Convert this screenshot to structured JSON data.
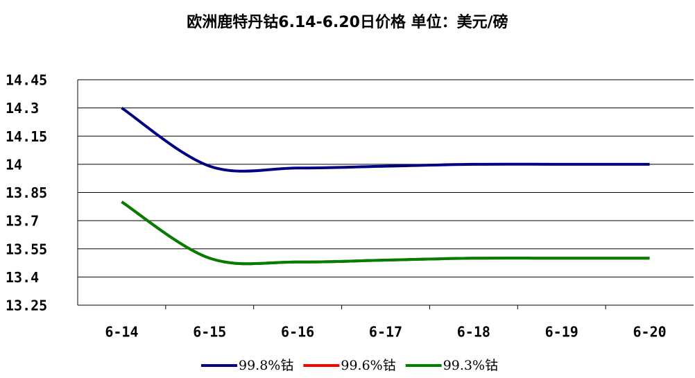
{
  "chart_data": {
    "type": "line",
    "title": "欧洲鹿特丹钴6.14-6.20日价格 单位：美元/磅",
    "categories": [
      "6-14",
      "6-15",
      "6-16",
      "6-17",
      "6-18",
      "6-19",
      "6-20"
    ],
    "series": [
      {
        "name": "99.8%钴",
        "color": "#000080",
        "values": [
          14.3,
          13.99,
          13.98,
          13.99,
          14,
          14,
          14
        ]
      },
      {
        "name": "99.6%钴",
        "color": "#ff0000",
        "values": [
          13.8,
          13.5,
          13.48,
          13.49,
          13.5,
          13.5,
          13.5
        ]
      },
      {
        "name": "99.3%钴",
        "color": "#008000",
        "values": [
          13.8,
          13.5,
          13.48,
          13.49,
          13.5,
          13.5,
          13.5
        ]
      }
    ],
    "ylim": [
      13.25,
      14.45
    ],
    "yticks": [
      13.25,
      13.4,
      13.55,
      13.7,
      13.85,
      14,
      14.15,
      14.3,
      14.45
    ],
    "grid": true
  }
}
